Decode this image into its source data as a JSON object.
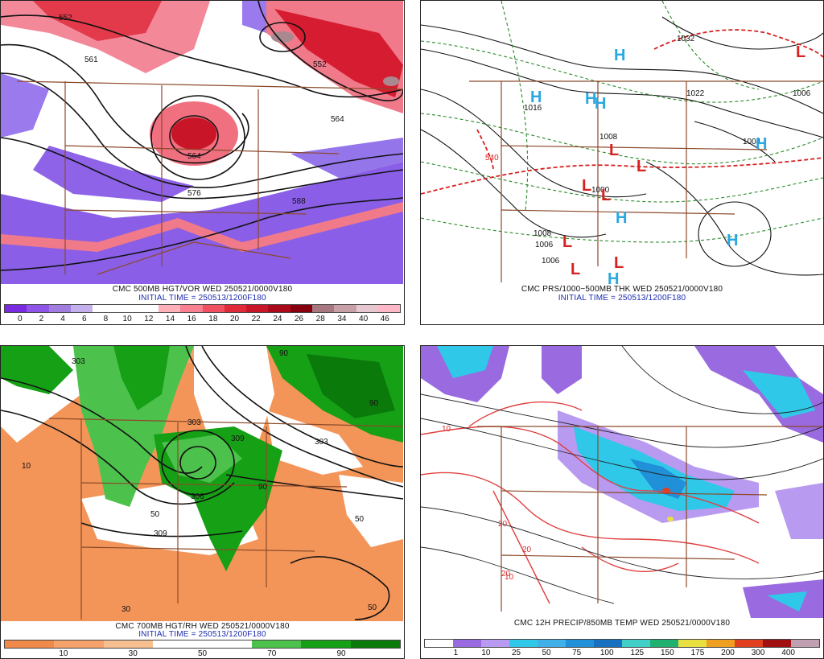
{
  "panels": [
    {
      "caption": "CMC 500MB HGT/VOR WED 250521/0000V180",
      "init": "INITIAL TIME = 250513/1200F180",
      "scale_colors": [
        "#7a2be0",
        "#8e55e8",
        "#a17de0",
        "#c4b0ec",
        "#ffffff",
        "#ffffff",
        "#ffffff",
        "#ffb0b8",
        "#f88090",
        "#f05060",
        "#e02a3a",
        "#c81528",
        "#aa0a1a",
        "#880010",
        "#a87880",
        "#c8a0a8",
        "#e8c8d0",
        "#ffb8c8"
      ],
      "scale_labels": [
        "0",
        "2",
        "4",
        "6",
        "8",
        "10",
        "12",
        "14",
        "16",
        "18",
        "20",
        "22",
        "24",
        "26",
        "28",
        "34",
        "40",
        "46"
      ],
      "contour_labels": [
        "552",
        "561",
        "552",
        "564",
        "564",
        "576",
        "588"
      ]
    },
    {
      "caption": "CMC PRS/1000−500MB THK WED 250521/0000V180",
      "init": "INITIAL TIME = 250513/1200F180",
      "contour_labels": [
        "1032",
        "1022",
        "1016",
        "1008",
        "1006",
        "1004",
        "1000",
        "1008",
        "1006",
        "1006",
        "540"
      ],
      "highs": [
        "H",
        "H",
        "H",
        "H",
        "H",
        "H",
        "H",
        "H"
      ],
      "lows": [
        "L",
        "L",
        "L",
        "L",
        "L",
        "L",
        "L",
        "L"
      ]
    },
    {
      "caption": "CMC 700MB HGT/RH WED 250521/0000V180",
      "init": "INITIAL TIME = 250513/1200F180",
      "scale_colors": [
        "#f08a4a",
        "#f5a36a",
        "#f8c090",
        "#ffffff",
        "#ffffff",
        "#4cc24c",
        "#16a016",
        "#0a7a0a"
      ],
      "scale_labels": [
        "10",
        "30",
        "50",
        "70",
        "90"
      ],
      "contour_labels": [
        "303",
        "303",
        "309",
        "303",
        "306",
        "309",
        "50",
        "10",
        "50",
        "90",
        "90",
        "90",
        "30",
        "50"
      ]
    },
    {
      "caption": "CMC 12H PRECIP/850MB TEMP WED 250521/0000V180",
      "init": "",
      "scale_colors": [
        "#ffffff",
        "#9a6ae0",
        "#b89af0",
        "#30c8e8",
        "#40b0e8",
        "#2090d8",
        "#1870c0",
        "#40d0c8",
        "#20b070",
        "#e8e040",
        "#f0a020",
        "#e04020",
        "#a01010",
        "#c0a0b0"
      ],
      "scale_labels": [
        "1",
        "10",
        "25",
        "50",
        "75",
        "100",
        "125",
        "150",
        "175",
        "200",
        "300",
        "400"
      ],
      "contour_labels": [
        "10",
        "20",
        "20",
        "20",
        "10"
      ]
    }
  ]
}
